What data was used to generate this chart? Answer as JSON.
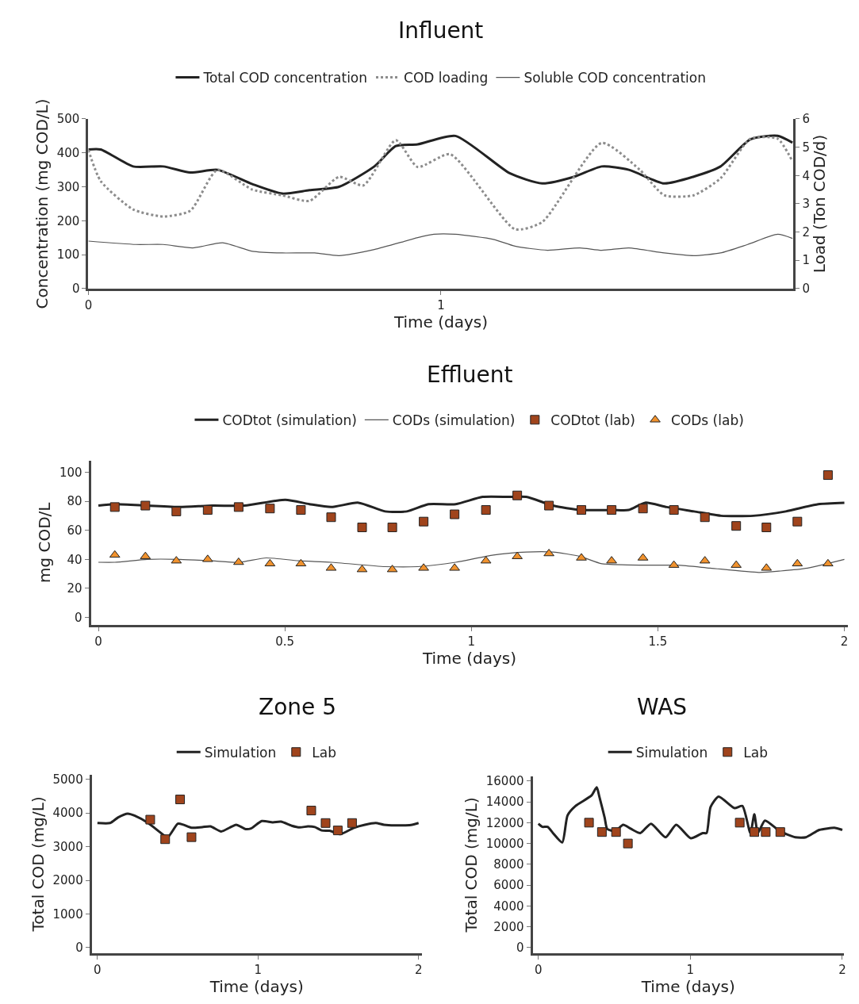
{
  "chart_data": [
    {
      "type": "line",
      "title": "Influent",
      "xlabel": "Time (days)",
      "ylabel": "Concentration (mg COD/L)",
      "y2label": "Load (Ton COD/d)",
      "xlim": [
        0,
        2
      ],
      "xticks": [
        0,
        1
      ],
      "ylim": [
        0,
        500
      ],
      "yticks": [
        0,
        100,
        200,
        300,
        400,
        500
      ],
      "y2lim": [
        0,
        6
      ],
      "y2ticks": [
        0,
        1,
        2,
        3,
        4,
        5,
        6
      ],
      "legend": "top",
      "series": [
        {
          "name": "Total COD concentration",
          "color": "#222222",
          "line_style": "solid",
          "x": [
            0,
            0.035,
            0.127,
            0.212,
            0.289,
            0.366,
            0.465,
            0.55,
            0.627,
            0.711,
            0.811,
            0.872,
            0.934,
            1.041,
            1.195,
            1.287,
            1.379,
            1.456,
            1.533,
            1.633,
            1.717,
            1.793,
            1.878,
            1.955,
            1.997
          ],
          "values": [
            410,
            410,
            360,
            360,
            342,
            350,
            308,
            280,
            290,
            300,
            360,
            420,
            425,
            450,
            340,
            310,
            330,
            360,
            350,
            310,
            330,
            360,
            440,
            450,
            430
          ]
        },
        {
          "name": "COD loading",
          "axis": "y2",
          "color": "#8c8c8c",
          "line_style": "dotted",
          "x": [
            0,
            0.035,
            0.127,
            0.212,
            0.289,
            0.366,
            0.465,
            0.55,
            0.627,
            0.711,
            0.78,
            0.872,
            0.934,
            1.026,
            1.21,
            1.287,
            1.456,
            1.564,
            1.633,
            1.717,
            1.793,
            1.878,
            1.955,
            1.997
          ],
          "values": [
            4.9,
            3.8,
            2.8,
            2.55,
            2.75,
            4.2,
            3.5,
            3.3,
            3.1,
            3.95,
            3.65,
            5.25,
            4.3,
            4.75,
            2.1,
            2.35,
            5.15,
            4.2,
            3.3,
            3.3,
            3.9,
            5.3,
            5.3,
            4.5
          ]
        },
        {
          "name": "Soluble COD concentration",
          "color": "#555555",
          "line_style": "solid",
          "x": [
            0,
            0.135,
            0.212,
            0.296,
            0.381,
            0.465,
            0.55,
            0.642,
            0.711,
            0.811,
            0.934,
            0.98,
            1.041,
            1.149,
            1.21,
            1.302,
            1.394,
            1.456,
            1.533,
            1.633,
            1.717,
            1.793,
            1.87,
            1.955,
            1.997
          ],
          "values": [
            140,
            130,
            130,
            120,
            135,
            110,
            105,
            105,
            97,
            115,
            150,
            160,
            160,
            145,
            125,
            113,
            120,
            113,
            120,
            105,
            97,
            105,
            130,
            160,
            148
          ]
        }
      ]
    },
    {
      "type": "line",
      "title": "Effluent",
      "xlabel": "Time (days)",
      "ylabel": "mg COD/L",
      "xlim": [
        -0.02,
        2.01
      ],
      "xticks": [
        0,
        0.5,
        1,
        1.5,
        2
      ],
      "ylim": [
        -5,
        108
      ],
      "yticks": [
        0,
        20,
        40,
        60,
        80,
        100
      ],
      "legend": "top",
      "series": [
        {
          "name": "CODtot (simulation)",
          "color": "#222222",
          "line_style": "solid",
          "x": [
            0,
            0.044,
            0.131,
            0.218,
            0.305,
            0.392,
            0.501,
            0.566,
            0.624,
            0.697,
            0.769,
            0.827,
            0.885,
            0.958,
            1.03,
            1.103,
            1.147,
            1.219,
            1.292,
            1.379,
            1.422,
            1.466,
            1.524,
            1.597,
            1.669,
            1.756,
            1.843,
            1.93,
            2.0
          ],
          "values": [
            77,
            78,
            77,
            76,
            77,
            77,
            81,
            78,
            76,
            79,
            73,
            73,
            78,
            78,
            83,
            83,
            83,
            77,
            74,
            74,
            74,
            79,
            76,
            73,
            70,
            70,
            73,
            78,
            79
          ]
        },
        {
          "name": "CODs (simulation)",
          "color": "#555555",
          "line_style": "solid",
          "x": [
            0,
            0.044,
            0.131,
            0.218,
            0.305,
            0.377,
            0.45,
            0.537,
            0.624,
            0.769,
            0.856,
            0.958,
            1.059,
            1.147,
            1.219,
            1.292,
            1.35,
            1.466,
            1.553,
            1.64,
            1.771,
            1.829,
            1.901,
            2.0
          ],
          "values": [
            38,
            38,
            40,
            40,
            39,
            38,
            41,
            39,
            38,
            35,
            35,
            38,
            43,
            45,
            45,
            42,
            37,
            36,
            36,
            34,
            31,
            32,
            34,
            40
          ]
        },
        {
          "name": "CODtot (lab)",
          "type": "scatter",
          "marker": "square",
          "color": "#a0441c",
          "x": [
            0.044,
            0.126,
            0.209,
            0.293,
            0.376,
            0.46,
            0.543,
            0.624,
            0.707,
            0.788,
            0.872,
            0.955,
            1.039,
            1.123,
            1.208,
            1.295,
            1.376,
            1.46,
            1.543,
            1.626,
            1.71,
            1.791,
            1.874,
            1.956
          ],
          "values": [
            76,
            77,
            73,
            74,
            76,
            75,
            74,
            69,
            62,
            62,
            66,
            71,
            74,
            84,
            77,
            74,
            74,
            75,
            74,
            69,
            63,
            62,
            66,
            98
          ]
        },
        {
          "name": "CODs (lab)",
          "type": "scatter",
          "marker": "triangle",
          "color": "#f0922e",
          "x": [
            0.044,
            0.126,
            0.209,
            0.293,
            0.376,
            0.46,
            0.543,
            0.624,
            0.707,
            0.788,
            0.872,
            0.955,
            1.039,
            1.123,
            1.208,
            1.295,
            1.376,
            1.46,
            1.543,
            1.626,
            1.71,
            1.791,
            1.874,
            1.956
          ],
          "values": [
            43,
            42,
            39,
            40,
            38,
            37,
            37,
            34,
            33,
            33,
            34,
            34,
            39,
            42,
            44,
            41,
            39,
            41,
            36,
            39,
            36,
            34,
            37,
            37
          ]
        }
      ]
    },
    {
      "type": "line",
      "title": "Zone 5",
      "xlabel": "Time (days)",
      "ylabel": "Total COD (mg/L)",
      "xlim": [
        -0.035,
        2.02
      ],
      "xticks": [
        0,
        1,
        2
      ],
      "ylim": [
        -160,
        5130
      ],
      "yticks": [
        0,
        1000,
        2000,
        3000,
        4000,
        5000
      ],
      "legend": "top",
      "series": [
        {
          "name": "Simulation",
          "color": "#222222",
          "line_style": "solid",
          "x": [
            0,
            0.079,
            0.13,
            0.189,
            0.231,
            0.316,
            0.417,
            0.442,
            0.501,
            0.535,
            0.586,
            0.653,
            0.704,
            0.771,
            0.822,
            0.864,
            0.923,
            0.957,
            1.024,
            1.092,
            1.143,
            1.21,
            1.261,
            1.311,
            1.354,
            1.396,
            1.446,
            1.514,
            1.598,
            1.666,
            1.733,
            1.784,
            1.851,
            1.953,
            2.0
          ],
          "values": [
            3700,
            3700,
            3870,
            3980,
            3920,
            3700,
            3330,
            3300,
            3680,
            3650,
            3560,
            3580,
            3600,
            3450,
            3560,
            3650,
            3520,
            3540,
            3760,
            3720,
            3740,
            3620,
            3570,
            3600,
            3580,
            3480,
            3470,
            3370,
            3560,
            3650,
            3700,
            3650,
            3630,
            3640,
            3700
          ]
        },
        {
          "name": "Lab",
          "type": "scatter",
          "marker": "square",
          "color": "#a0441c",
          "x": [
            0.329,
            0.422,
            0.515,
            0.586,
            1.332,
            1.421,
            1.497,
            1.586
          ],
          "values": [
            3800,
            3220,
            4400,
            3280,
            4070,
            3700,
            3480,
            3700
          ]
        }
      ]
    },
    {
      "type": "line",
      "title": "WAS",
      "xlabel": "Time (days)",
      "ylabel": "Total COD (mg/L)",
      "xlim": [
        -0.038,
        2.01
      ],
      "xticks": [
        0,
        1,
        2
      ],
      "ylim": [
        -520,
        16440
      ],
      "yticks": [
        0,
        2000,
        4000,
        6000,
        8000,
        10000,
        12000,
        14000,
        16000
      ],
      "legend": "top",
      "series": [
        {
          "name": "Simulation",
          "color": "#222222",
          "line_style": "solid",
          "x": [
            0,
            0.026,
            0.061,
            0.096,
            0.157,
            0.192,
            0.244,
            0.349,
            0.384,
            0.401,
            0.436,
            0.453,
            0.506,
            0.558,
            0.61,
            0.671,
            0.741,
            0.837,
            0.907,
            1.003,
            1.081,
            1.107,
            1.133,
            1.186,
            1.29,
            1.343,
            1.395,
            1.421,
            1.444,
            1.491,
            1.587,
            1.691,
            1.761,
            1.848,
            1.953,
            2.0
          ],
          "values": [
            11900,
            11600,
            11600,
            11000,
            10100,
            12700,
            13600,
            14600,
            15400,
            14500,
            12500,
            11400,
            11200,
            11800,
            11400,
            11000,
            11900,
            10600,
            11800,
            10500,
            11000,
            11000,
            13500,
            14500,
            13400,
            13600,
            11000,
            12800,
            11000,
            12200,
            11200,
            10600,
            10600,
            11300,
            11500,
            11300
          ]
        },
        {
          "name": "Lab",
          "type": "scatter",
          "marker": "square",
          "color": "#a0441c",
          "x": [
            0.333,
            0.418,
            0.511,
            0.589,
            1.325,
            1.421,
            1.496,
            1.592
          ],
          "values": [
            12000,
            11100,
            11100,
            10000,
            12000,
            11100,
            11100,
            11100
          ]
        }
      ]
    }
  ]
}
